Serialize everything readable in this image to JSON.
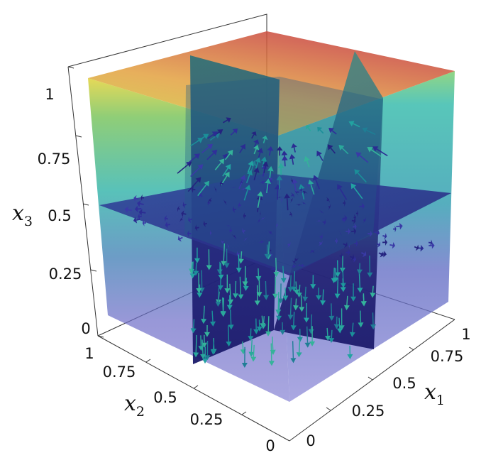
{
  "axes": {
    "x1": {
      "label": "x",
      "subscript": "1",
      "ticks": [
        "0",
        "0.25",
        "0.5",
        "0.75",
        "1"
      ]
    },
    "x2": {
      "label": "x",
      "subscript": "2",
      "ticks": [
        "0",
        "0.25",
        "0.5",
        "0.75",
        "1"
      ]
    },
    "x3": {
      "label": "x",
      "subscript": "3",
      "ticks": [
        "0",
        "0.25",
        "0.5",
        "0.75",
        "1"
      ]
    }
  },
  "colormap": [
    "#45307a",
    "#3b4ba0",
    "#2f7fb0",
    "#2fa6a6",
    "#37c29a",
    "#8fd05a",
    "#d9d23a",
    "#e08a3a",
    "#c8413c"
  ],
  "colors": {
    "frame": "#222222",
    "cube_lower": "#8a87d4",
    "slice_dark": "#1d1b6e",
    "arrow_cool": "#1ea3a0",
    "arrow_warm": "#d45b3b"
  }
}
